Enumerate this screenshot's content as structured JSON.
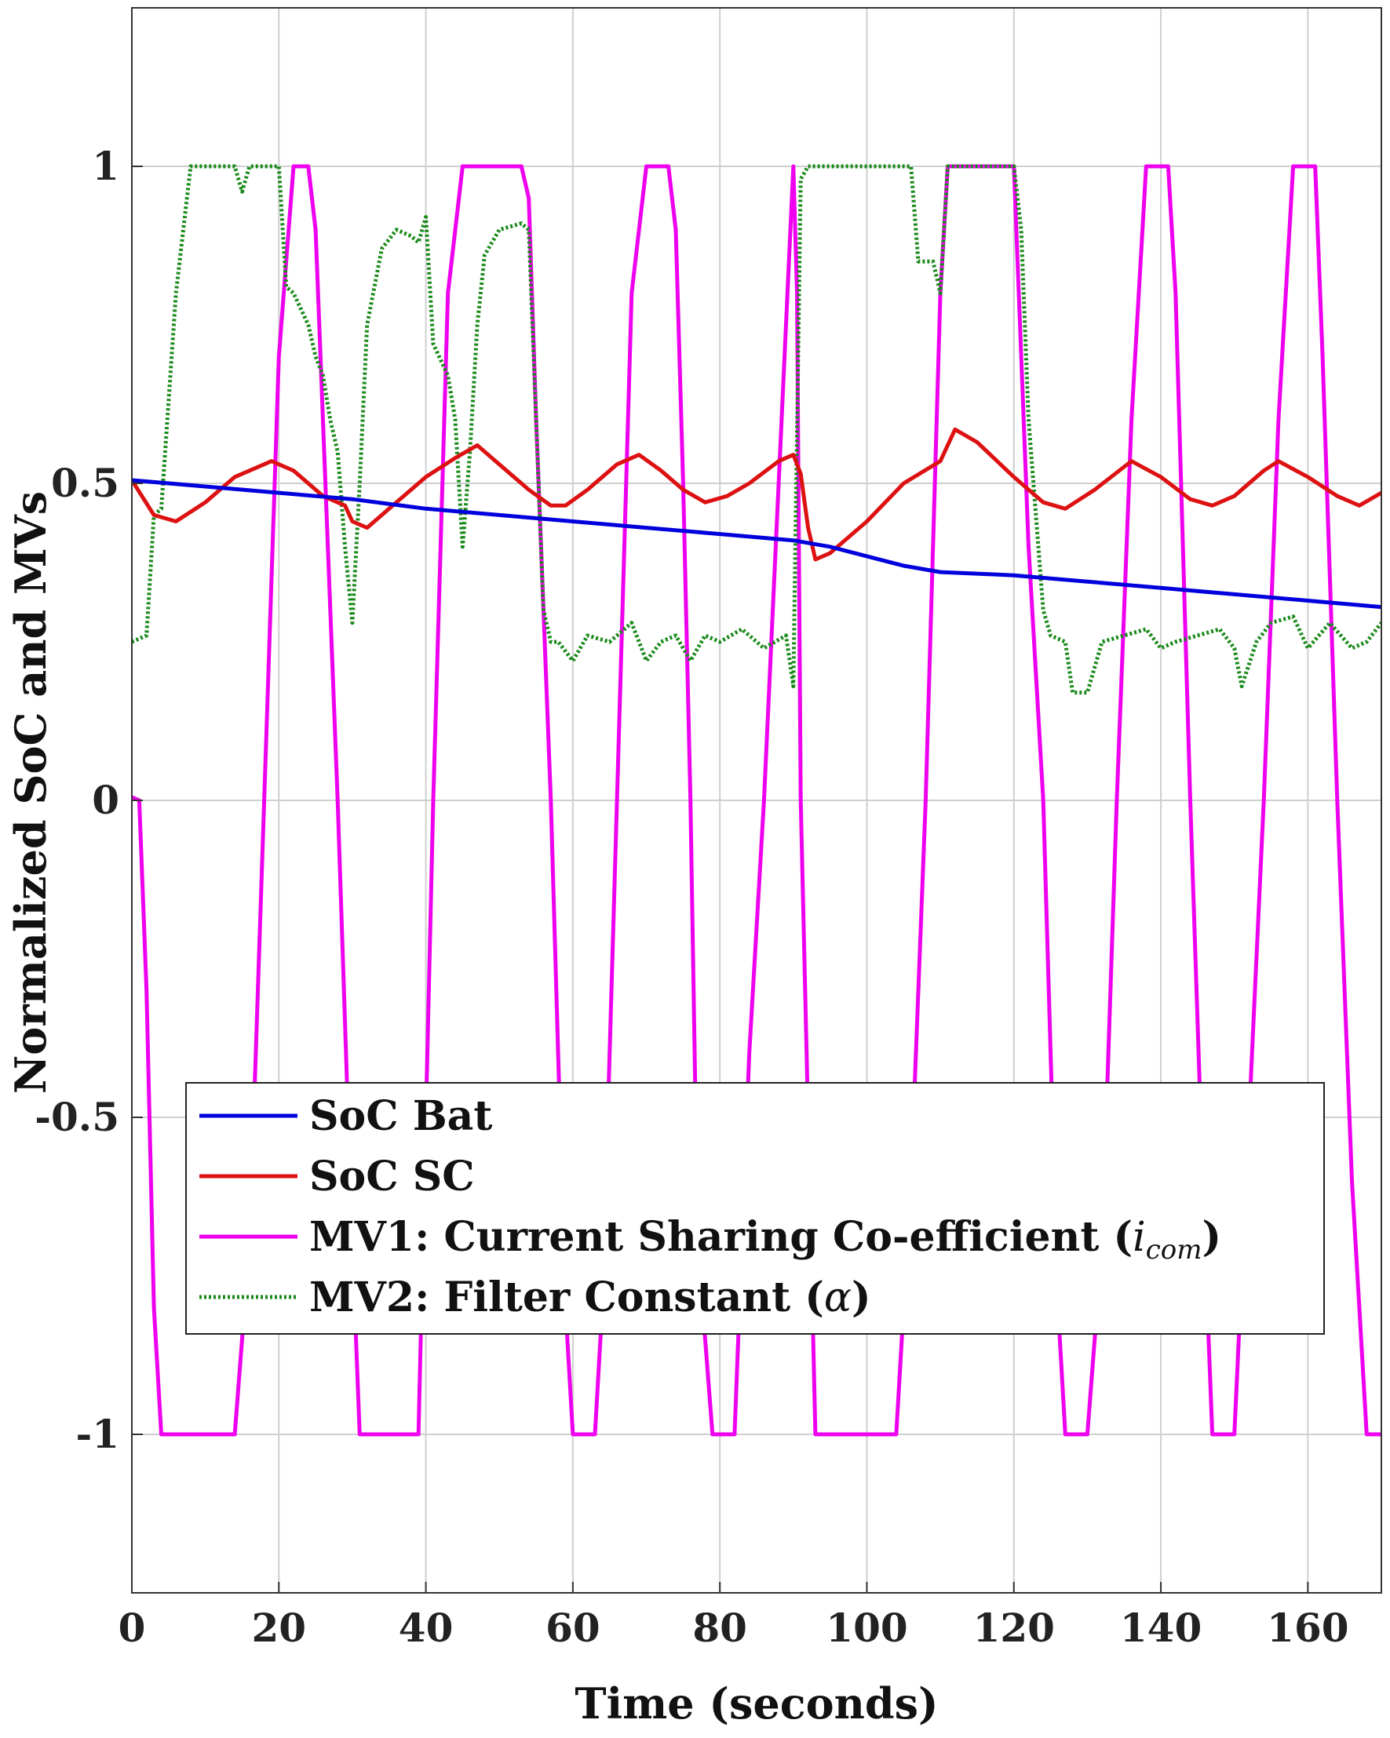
{
  "chart_data": {
    "type": "line",
    "title": "",
    "xlabel": "Time (seconds)",
    "ylabel": "Normalized SoC and MVs",
    "xlim": [
      0,
      170
    ],
    "ylim": [
      -1.25,
      1.25
    ],
    "xticks": [
      0,
      20,
      40,
      60,
      80,
      100,
      120,
      140,
      160
    ],
    "yticks": [
      1,
      0.5,
      0,
      -0.5,
      -1
    ],
    "xtick_labels": [
      "0",
      "20",
      "40",
      "60",
      "80",
      "100",
      "120",
      "140",
      "160"
    ],
    "ytick_labels": [
      "1",
      "0.5",
      "0",
      "-0.5",
      "-1"
    ],
    "grid": true,
    "legend_position": "lower-left",
    "series": [
      {
        "name": "SoC Bat",
        "color": "#0000dd",
        "style": "solid",
        "points": [
          [
            0,
            0.505
          ],
          [
            10,
            0.495
          ],
          [
            20,
            0.485
          ],
          [
            30,
            0.475
          ],
          [
            40,
            0.46
          ],
          [
            50,
            0.45
          ],
          [
            60,
            0.44
          ],
          [
            70,
            0.43
          ],
          [
            80,
            0.42
          ],
          [
            90,
            0.41
          ],
          [
            95,
            0.4
          ],
          [
            100,
            0.385
          ],
          [
            105,
            0.37
          ],
          [
            110,
            0.36
          ],
          [
            120,
            0.355
          ],
          [
            130,
            0.345
          ],
          [
            140,
            0.335
          ],
          [
            150,
            0.325
          ],
          [
            160,
            0.315
          ],
          [
            170,
            0.305
          ]
        ]
      },
      {
        "name": "SoC SC",
        "color": "#dd1111",
        "style": "solid",
        "points": [
          [
            0,
            0.505
          ],
          [
            3,
            0.45
          ],
          [
            6,
            0.44
          ],
          [
            10,
            0.47
          ],
          [
            14,
            0.51
          ],
          [
            19,
            0.535
          ],
          [
            22,
            0.52
          ],
          [
            26,
            0.48
          ],
          [
            29,
            0.465
          ],
          [
            30,
            0.44
          ],
          [
            32,
            0.43
          ],
          [
            36,
            0.47
          ],
          [
            40,
            0.51
          ],
          [
            44,
            0.54
          ],
          [
            47,
            0.56
          ],
          [
            50,
            0.53
          ],
          [
            54,
            0.49
          ],
          [
            57,
            0.465
          ],
          [
            59,
            0.465
          ],
          [
            62,
            0.49
          ],
          [
            66,
            0.53
          ],
          [
            69,
            0.545
          ],
          [
            72,
            0.52
          ],
          [
            75,
            0.49
          ],
          [
            78,
            0.47
          ],
          [
            81,
            0.48
          ],
          [
            84,
            0.5
          ],
          [
            88,
            0.535
          ],
          [
            90,
            0.545
          ],
          [
            91,
            0.515
          ],
          [
            92,
            0.43
          ],
          [
            93,
            0.38
          ],
          [
            95,
            0.39
          ],
          [
            100,
            0.44
          ],
          [
            105,
            0.5
          ],
          [
            110,
            0.535
          ],
          [
            112,
            0.585
          ],
          [
            115,
            0.565
          ],
          [
            120,
            0.51
          ],
          [
            124,
            0.47
          ],
          [
            127,
            0.46
          ],
          [
            131,
            0.49
          ],
          [
            136,
            0.535
          ],
          [
            140,
            0.51
          ],
          [
            144,
            0.475
          ],
          [
            147,
            0.465
          ],
          [
            150,
            0.48
          ],
          [
            154,
            0.52
          ],
          [
            156,
            0.535
          ],
          [
            160,
            0.51
          ],
          [
            164,
            0.48
          ],
          [
            167,
            0.465
          ],
          [
            170,
            0.485
          ]
        ]
      },
      {
        "name": "MV1: Current Sharing Co-efficient (i_com)",
        "color": "#ee00ee",
        "style": "solid",
        "points": [
          [
            0,
            0.005
          ],
          [
            1,
            0
          ],
          [
            2,
            -0.3
          ],
          [
            3,
            -0.8
          ],
          [
            4,
            -1
          ],
          [
            14,
            -1
          ],
          [
            16,
            -0.7
          ],
          [
            18,
            0
          ],
          [
            20,
            0.7
          ],
          [
            22,
            1
          ],
          [
            24,
            1
          ],
          [
            25,
            0.9
          ],
          [
            28,
            0
          ],
          [
            30,
            -0.7
          ],
          [
            31,
            -1
          ],
          [
            39,
            -1
          ],
          [
            41,
            0
          ],
          [
            43,
            0.8
          ],
          [
            45,
            1
          ],
          [
            53,
            1
          ],
          [
            54,
            0.95
          ],
          [
            55,
            0.6
          ],
          [
            57,
            0
          ],
          [
            59,
            -0.8
          ],
          [
            60,
            -1
          ],
          [
            63,
            -1
          ],
          [
            64,
            -0.8
          ],
          [
            66,
            0
          ],
          [
            68,
            0.8
          ],
          [
            70,
            1
          ],
          [
            73,
            1
          ],
          [
            74,
            0.9
          ],
          [
            75,
            0.5
          ],
          [
            76,
            0
          ],
          [
            77,
            -0.7
          ],
          [
            79,
            -1
          ],
          [
            82,
            -1
          ],
          [
            84,
            -0.4
          ],
          [
            86,
            0
          ],
          [
            88,
            0.5
          ],
          [
            90,
            1
          ],
          [
            90.5,
            0.8
          ],
          [
            91,
            0
          ],
          [
            92,
            -0.5
          ],
          [
            93,
            -1
          ],
          [
            104,
            -1
          ],
          [
            106,
            -0.6
          ],
          [
            108,
            0
          ],
          [
            110,
            0.8
          ],
          [
            111,
            1
          ],
          [
            120,
            1
          ],
          [
            122,
            0.4
          ],
          [
            124,
            0
          ],
          [
            126,
            -0.8
          ],
          [
            127,
            -1
          ],
          [
            130,
            -1
          ],
          [
            132,
            -0.7
          ],
          [
            134,
            0
          ],
          [
            136,
            0.6
          ],
          [
            138,
            1
          ],
          [
            141,
            1
          ],
          [
            142,
            0.8
          ],
          [
            144,
            0
          ],
          [
            146,
            -0.7
          ],
          [
            147,
            -1
          ],
          [
            150,
            -1
          ],
          [
            152,
            -0.5
          ],
          [
            154,
            0
          ],
          [
            156,
            0.6
          ],
          [
            158,
            1
          ],
          [
            161,
            1
          ],
          [
            162,
            0.7
          ],
          [
            164,
            0
          ],
          [
            166,
            -0.6
          ],
          [
            168,
            -1
          ],
          [
            170,
            -1
          ]
        ]
      },
      {
        "name": "MV2: Filter Constant (α)",
        "color": "#1a8a1a",
        "style": "dotted",
        "points": [
          [
            0,
            0.25
          ],
          [
            2,
            0.26
          ],
          [
            3,
            0.45
          ],
          [
            4,
            0.46
          ],
          [
            6,
            0.8
          ],
          [
            8,
            1
          ],
          [
            14,
            1
          ],
          [
            15,
            0.96
          ],
          [
            16,
            1
          ],
          [
            20,
            1
          ],
          [
            21,
            0.81
          ],
          [
            22,
            0.8
          ],
          [
            24,
            0.75
          ],
          [
            25,
            0.7
          ],
          [
            26,
            0.67
          ],
          [
            27,
            0.6
          ],
          [
            28,
            0.55
          ],
          [
            29,
            0.4
          ],
          [
            30,
            0.28
          ],
          [
            31,
            0.5
          ],
          [
            32,
            0.75
          ],
          [
            34,
            0.87
          ],
          [
            36,
            0.9
          ],
          [
            38,
            0.89
          ],
          [
            39,
            0.88
          ],
          [
            40,
            0.92
          ],
          [
            41,
            0.72
          ],
          [
            43,
            0.67
          ],
          [
            44,
            0.6
          ],
          [
            45,
            0.4
          ],
          [
            46,
            0.55
          ],
          [
            47,
            0.75
          ],
          [
            48,
            0.86
          ],
          [
            50,
            0.9
          ],
          [
            53,
            0.91
          ],
          [
            54,
            0.9
          ],
          [
            55,
            0.6
          ],
          [
            56,
            0.3
          ],
          [
            57,
            0.25
          ],
          [
            58,
            0.25
          ],
          [
            60,
            0.22
          ],
          [
            62,
            0.26
          ],
          [
            65,
            0.25
          ],
          [
            68,
            0.28
          ],
          [
            70,
            0.22
          ],
          [
            72,
            0.25
          ],
          [
            74,
            0.26
          ],
          [
            76,
            0.22
          ],
          [
            78,
            0.26
          ],
          [
            80,
            0.25
          ],
          [
            83,
            0.27
          ],
          [
            86,
            0.24
          ],
          [
            89,
            0.26
          ],
          [
            90,
            0.18
          ],
          [
            91,
            0.98
          ],
          [
            92,
            1
          ],
          [
            100,
            1
          ],
          [
            106,
            1
          ],
          [
            107,
            0.85
          ],
          [
            109,
            0.85
          ],
          [
            110,
            0.8
          ],
          [
            111,
            1
          ],
          [
            120,
            1
          ],
          [
            121,
            0.9
          ],
          [
            122,
            0.6
          ],
          [
            124,
            0.3
          ],
          [
            125,
            0.26
          ],
          [
            127,
            0.25
          ],
          [
            128,
            0.17
          ],
          [
            130,
            0.17
          ],
          [
            132,
            0.25
          ],
          [
            135,
            0.26
          ],
          [
            138,
            0.27
          ],
          [
            140,
            0.24
          ],
          [
            142,
            0.25
          ],
          [
            145,
            0.26
          ],
          [
            148,
            0.27
          ],
          [
            150,
            0.24
          ],
          [
            151,
            0.18
          ],
          [
            153,
            0.25
          ],
          [
            155,
            0.28
          ],
          [
            158,
            0.29
          ],
          [
            160,
            0.24
          ],
          [
            163,
            0.28
          ],
          [
            166,
            0.24
          ],
          [
            168,
            0.25
          ],
          [
            170,
            0.28
          ]
        ]
      }
    ],
    "legend_parts": [
      {
        "main": "SoC Bat",
        "ital": "",
        "sub": ""
      },
      {
        "main": "SoC SC",
        "ital": "",
        "sub": ""
      },
      {
        "main": "MV1: Current Sharing Co-efficient (",
        "ital": "i",
        "sub": "com",
        "close": ")"
      },
      {
        "main": "MV2: Filter Constant (",
        "ital": "α",
        "sub": "",
        "close": ")"
      }
    ]
  }
}
